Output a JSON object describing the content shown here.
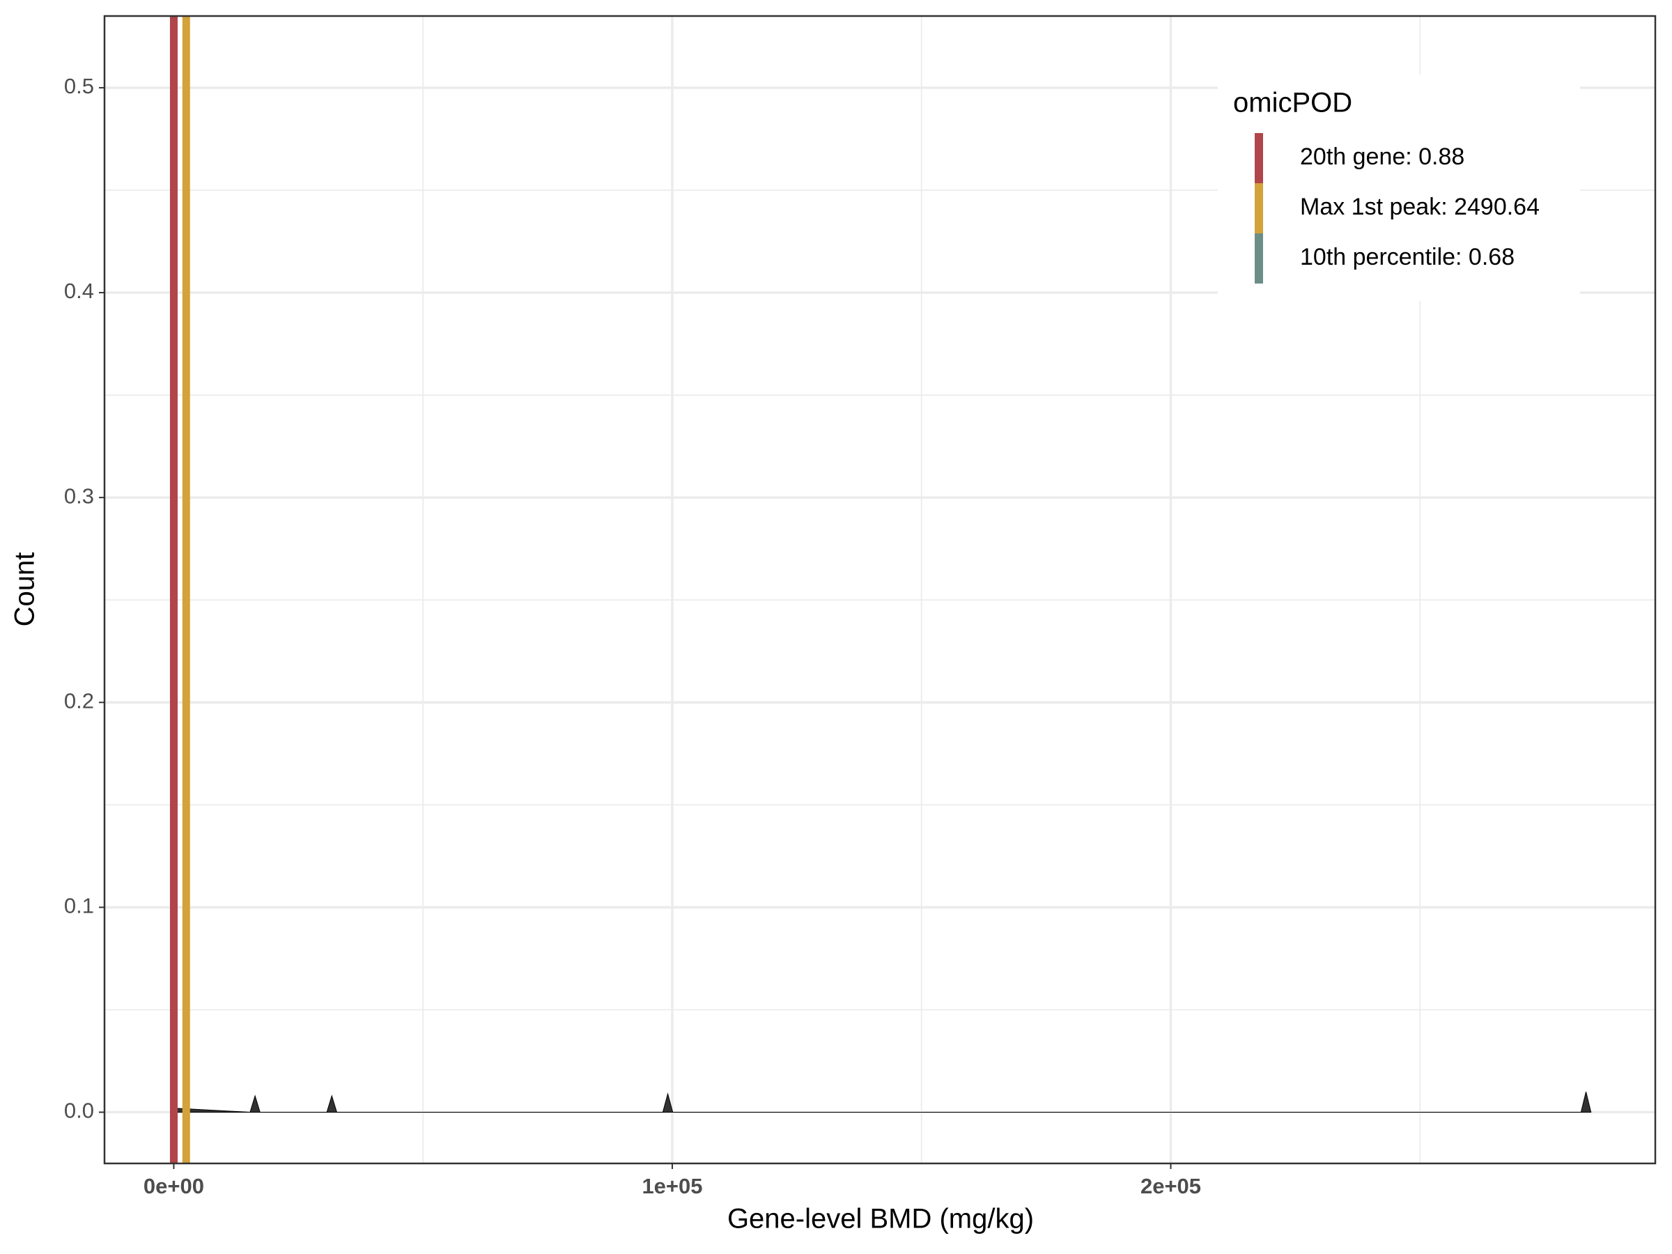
{
  "chart_data": {
    "type": "density",
    "x_label": "Gene-level BMD (mg/kg)",
    "y_label": "Count",
    "x": [
      0,
      15300,
      16300,
      17300,
      30700,
      31700,
      32700,
      98100,
      99100,
      100100,
      282300,
      283300,
      284300
    ],
    "values": [
      0.002,
      0,
      0.008,
      0,
      0,
      0.008,
      0,
      0,
      0.009,
      0,
      0,
      0.01,
      0
    ],
    "color": "#333333",
    "xlim": [
      -13900,
      297200
    ],
    "ylim": [
      -0.025,
      0.535
    ],
    "xticks": [
      {
        "value": 0,
        "label": "0e+00"
      },
      {
        "value": 100000,
        "label": "1e+05"
      },
      {
        "value": 200000,
        "label": "2e+05"
      }
    ],
    "yticks": [
      {
        "value": 0,
        "label": "0.0"
      },
      0.1,
      0.2,
      0.3,
      0.4,
      0.5
    ],
    "x_minor_ticks": [
      50000,
      150000,
      250000
    ],
    "y_minor_ticks": [
      0.05,
      0.15,
      0.25,
      0.35,
      0.45
    ],
    "grid": true,
    "legend_title": "omicPOD",
    "legend_position": "top-right",
    "vlines": [
      {
        "name": "20th gene: 0.88",
        "color": "#b0454a",
        "x": 0.88
      },
      {
        "name": "Max 1st peak: 2490.64",
        "color": "#d4a23a",
        "x": 2490.64
      },
      {
        "name": "10th percentile: 0.68",
        "color": "#6b8e87",
        "x": 0.68
      }
    ]
  }
}
